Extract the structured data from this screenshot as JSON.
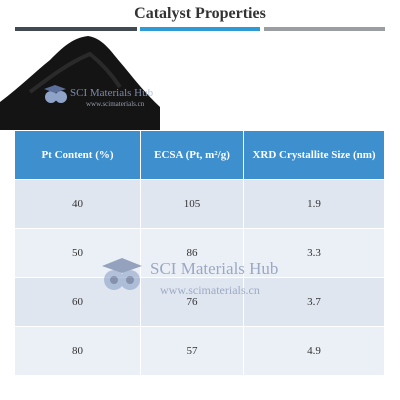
{
  "header": {
    "title": "Catalyst Properties"
  },
  "table": {
    "columns": [
      "Pt Content (%)",
      "ECSA (Pt, m²/g)",
      "XRD Crystallite Size (nm)"
    ],
    "rows": [
      [
        40,
        105,
        1.9
      ],
      [
        50,
        86,
        3.3
      ],
      [
        60,
        76,
        3.7
      ],
      [
        80,
        57,
        4.9
      ]
    ]
  },
  "watermarks": [
    {
      "name": "SCI Materials Hub",
      "url": "www.scimaterials.cn"
    },
    {
      "name": "SCI Materials Hub",
      "url": "www.scimaterials.cn"
    }
  ]
}
